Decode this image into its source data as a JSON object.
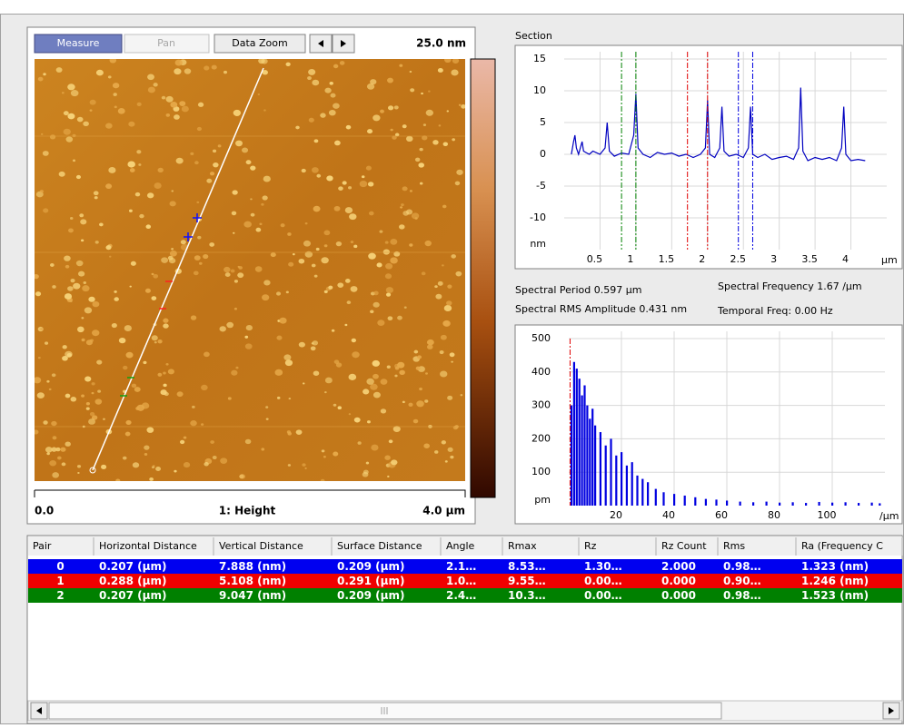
{
  "toolbar": {
    "buttons": [
      "Measure",
      "Pan",
      "Data Zoom"
    ],
    "scale_label": "25.0 nm"
  },
  "image": {
    "x_start": "0.0",
    "channel": "1: Height",
    "x_end": "4.0 µm"
  },
  "section": {
    "title": "Section",
    "x_unit": "µm",
    "y_unit": "nm",
    "color": "#0000c0",
    "grid": true,
    "xlim": [
      0,
      4.5
    ],
    "ylim": [
      -15,
      15
    ],
    "xticks": [
      0.5,
      1,
      1.5,
      2,
      2.5,
      3,
      3.5,
      4
    ],
    "yticks": [
      15,
      10,
      5,
      0,
      -5,
      -10
    ],
    "x": [
      0.1,
      0.13,
      0.15,
      0.17,
      0.2,
      0.25,
      0.27,
      0.3,
      0.35,
      0.4,
      0.5,
      0.57,
      0.6,
      0.63,
      0.7,
      0.8,
      0.9,
      0.97,
      1.0,
      1.03,
      1.1,
      1.2,
      1.3,
      1.4,
      1.5,
      1.6,
      1.7,
      1.8,
      1.9,
      1.97,
      2.0,
      2.03,
      2.1,
      2.17,
      2.2,
      2.23,
      2.3,
      2.4,
      2.5,
      2.57,
      2.6,
      2.63,
      2.7,
      2.8,
      2.9,
      3.0,
      3.1,
      3.2,
      3.27,
      3.3,
      3.33,
      3.4,
      3.5,
      3.6,
      3.7,
      3.8,
      3.87,
      3.9,
      3.93,
      4.0,
      4.1,
      4.2
    ],
    "values": [
      0,
      2,
      3,
      1,
      0,
      2,
      0.5,
      0.3,
      0,
      0.5,
      0,
      1,
      5,
      0.5,
      -0.3,
      0.2,
      0,
      3,
      9.5,
      1,
      0,
      -0.5,
      0.3,
      0,
      0.2,
      -0.3,
      0,
      -0.5,
      0,
      1,
      8.5,
      0,
      -0.5,
      1,
      7.5,
      0.5,
      -0.3,
      0,
      -0.5,
      1,
      7.5,
      0,
      -0.5,
      0,
      -0.8,
      -0.5,
      -0.3,
      -0.8,
      1,
      10.5,
      0.5,
      -1,
      -0.5,
      -0.8,
      -0.5,
      -1,
      1,
      7.5,
      0,
      -1,
      -0.8,
      -1
    ],
    "cursors": [
      {
        "color": "#008000",
        "x": 0.8
      },
      {
        "color": "#008000",
        "x": 1.0
      },
      {
        "color": "#e00000",
        "x": 1.72
      },
      {
        "color": "#e00000",
        "x": 2.0
      },
      {
        "color": "#0000e0",
        "x": 2.43
      },
      {
        "color": "#0000e0",
        "x": 2.63
      }
    ]
  },
  "stats": {
    "period": "Spectral Period 0.597 µm",
    "frequency": "Spectral Frequency 1.67 /µm",
    "rms": "Spectral RMS Amplitude 0.431 nm",
    "temporal": "Temporal Freq: 0.00 Hz"
  },
  "spectrum": {
    "x_unit": "/µm",
    "y_unit": "pm",
    "color": "#0000e0",
    "grid": true,
    "xlim": [
      0,
      120
    ],
    "ylim": [
      0,
      500
    ],
    "xticks": [
      20,
      40,
      60,
      80,
      100
    ],
    "yticks": [
      500,
      400,
      300,
      200,
      100
    ],
    "x": [
      1,
      2,
      3,
      4,
      5,
      6,
      7,
      8,
      9,
      10,
      12,
      14,
      16,
      18,
      20,
      22,
      24,
      26,
      28,
      30,
      33,
      36,
      40,
      44,
      48,
      52,
      56,
      60,
      65,
      70,
      75,
      80,
      85,
      90,
      95,
      100,
      105,
      110,
      115,
      118
    ],
    "values": [
      300,
      430,
      410,
      380,
      330,
      360,
      300,
      260,
      290,
      240,
      220,
      180,
      200,
      150,
      160,
      120,
      130,
      90,
      80,
      70,
      50,
      40,
      35,
      30,
      25,
      20,
      18,
      15,
      12,
      10,
      12,
      9,
      10,
      8,
      11,
      9,
      10,
      8,
      9,
      7
    ],
    "cursor": {
      "color": "#e00000",
      "x": 0.5
    }
  },
  "table": {
    "headers": [
      "Pair",
      "Horizontal Distance",
      "Vertical Distance",
      "Surface Distance",
      "Angle",
      "Rmax",
      "Rz",
      "Rz Count",
      "Rms",
      "Ra (Frequency C"
    ],
    "row_colors": [
      "#0000f0",
      "#f00000",
      "#008000"
    ],
    "rows": [
      [
        "0",
        "0.207 (µm)",
        "7.888 (nm)",
        "0.209 (µm)",
        "2.1…",
        "8.53…",
        "1.30…",
        "2.000",
        "0.98…",
        "1.323 (nm)"
      ],
      [
        "1",
        "0.288 (µm)",
        "5.108 (nm)",
        "0.291 (µm)",
        "1.0…",
        "9.55…",
        "0.00…",
        "0.000",
        "0.90…",
        "1.246 (nm)"
      ],
      [
        "2",
        "0.207 (µm)",
        "9.047 (nm)",
        "0.209 (µm)",
        "2.4…",
        "10.3…",
        "0.00…",
        "0.000",
        "0.98…",
        "1.523 (nm)"
      ]
    ]
  }
}
